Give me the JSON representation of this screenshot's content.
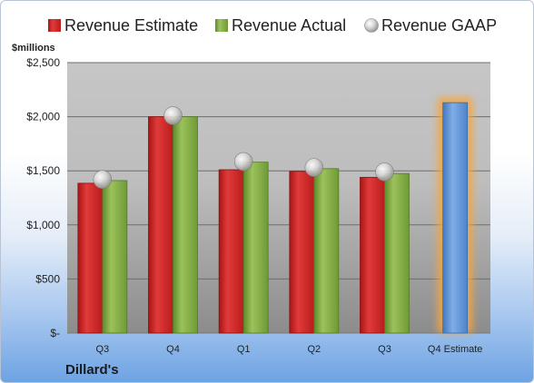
{
  "chart_data": {
    "type": "bar",
    "title": "",
    "unit_label": "$millions",
    "company": "Dillard's",
    "categories": [
      "Q3",
      "Q4",
      "Q1",
      "Q2",
      "Q3",
      "Q4 Estimate"
    ],
    "series": [
      {
        "name": "Revenue Estimate",
        "color": "#d42a2a",
        "values": [
          1385,
          2000,
          1510,
          1495,
          1440,
          null
        ]
      },
      {
        "name": "Revenue Actual",
        "color": "#7aa23e",
        "values": [
          1410,
          2000,
          1580,
          1520,
          1475,
          null
        ]
      },
      {
        "name": "Revenue GAAP",
        "color": "#bfbfbf",
        "values": [
          1420,
          2010,
          1585,
          1530,
          1490,
          null
        ]
      }
    ],
    "forecast": {
      "category": "Q4 Estimate",
      "value": 2130,
      "color": "#5f93d6",
      "glow": "#f5a640"
    },
    "ylim": [
      0,
      2500
    ],
    "yticks": [
      {
        "value": 0,
        "label": "$-"
      },
      {
        "value": 500,
        "label": "$500"
      },
      {
        "value": 1000,
        "label": "$1,000"
      },
      {
        "value": 1500,
        "label": "$1,500"
      },
      {
        "value": 2000,
        "label": "$2,000"
      },
      {
        "value": 2500,
        "label": "$2,500"
      }
    ],
    "grid": true,
    "legend_position": "top"
  }
}
